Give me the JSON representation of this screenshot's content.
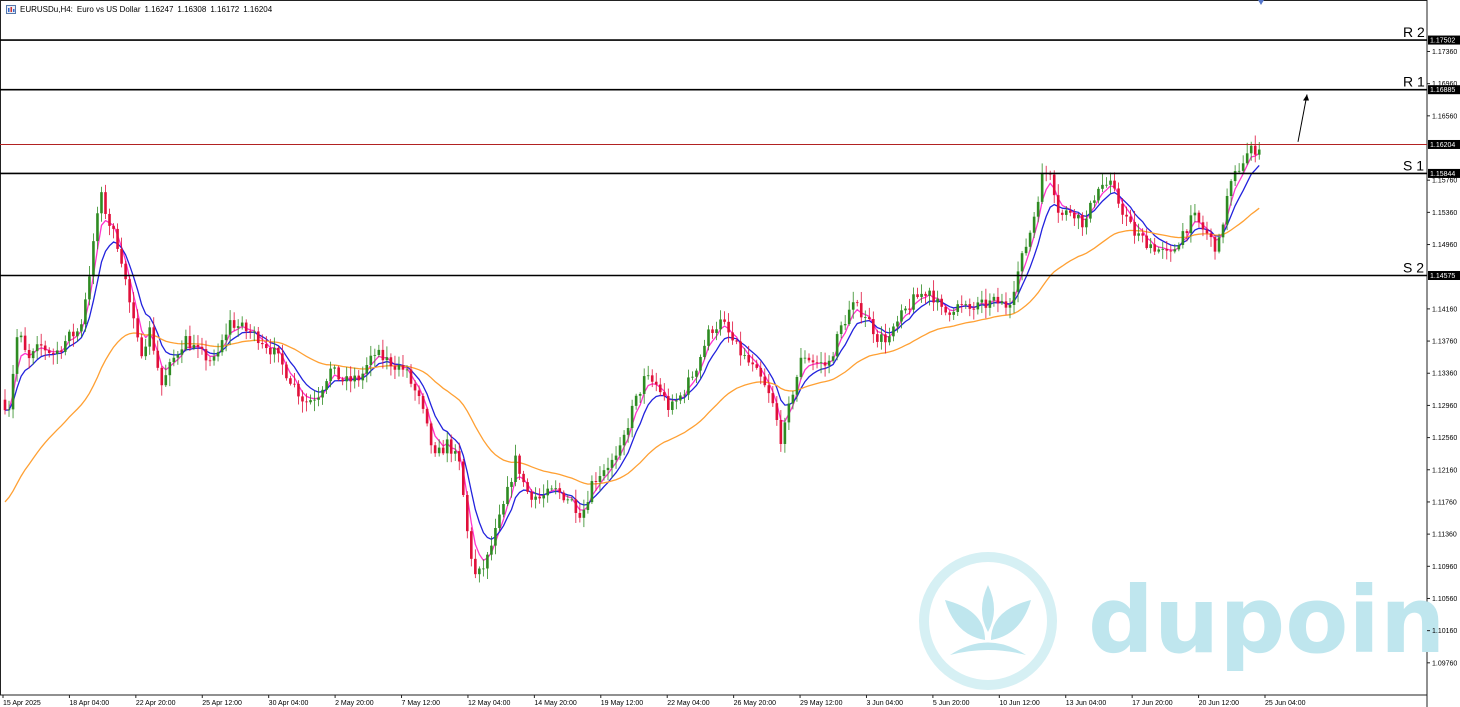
{
  "header": {
    "symbol": "EURUSDu,H4:",
    "description": "Euro vs US Dollar",
    "open": "1.16247",
    "high": "1.16308",
    "low": "1.16172",
    "close": "1.16204"
  },
  "watermark": {
    "text": "dupoin",
    "icon": "lotus-logo-icon",
    "color": "#bfe6ee"
  },
  "colors": {
    "bull": "#2e8b22",
    "bear": "#e0103a",
    "ma_fast": "#ff33cc",
    "ma_mid": "#2222dd",
    "ma_slow": "#ffa033",
    "current_price_line": "#b22222",
    "level_line": "#000000"
  },
  "chart_data": {
    "type": "candlestick",
    "timeframe": "H4",
    "ylim": [
      1.0936,
      1.18
    ],
    "yticks": [
      "1.17360",
      "1.16960",
      "1.16560",
      "1.15760",
      "1.15360",
      "1.14960",
      "1.14160",
      "1.13760",
      "1.13360",
      "1.12960",
      "1.12560",
      "1.12160",
      "1.11760",
      "1.11360",
      "1.10960",
      "1.10560",
      "1.10160",
      "1.09760"
    ],
    "xticks": [
      "15 Apr 2025",
      "18 Apr 04:00",
      "22 Apr 20:00",
      "25 Apr 12:00",
      "30 Apr 04:00",
      "2 May 20:00",
      "7 May 12:00",
      "12 May 04:00",
      "14 May 20:00",
      "19 May 12:00",
      "22 May 04:00",
      "26 May 20:00",
      "29 May 12:00",
      "3 Jun 04:00",
      "5 Jun 20:00",
      "10 Jun 12:00",
      "13 Jun 04:00",
      "17 Jun 20:00",
      "20 Jun 12:00",
      "25 Jun 04:00"
    ],
    "levels": [
      {
        "name": "R 2",
        "value": 1.17502,
        "label": "1.17502"
      },
      {
        "name": "R 1",
        "value": 1.16885,
        "label": "1.16885"
      },
      {
        "name": "S 1",
        "value": 1.15844,
        "label": "1.15844"
      },
      {
        "name": "S 2",
        "value": 1.14575,
        "label": "1.14575"
      }
    ],
    "current_price": {
      "value": 1.16204,
      "label": "1.16204"
    },
    "close_path": [
      [
        0,
        1.132
      ],
      [
        8,
        1.1285
      ],
      [
        18,
        1.139
      ],
      [
        28,
        1.135
      ],
      [
        40,
        1.137
      ],
      [
        55,
        1.136
      ],
      [
        68,
        1.138
      ],
      [
        80,
        1.139
      ],
      [
        92,
        1.148
      ],
      [
        100,
        1.156
      ],
      [
        110,
        1.152
      ],
      [
        120,
        1.149
      ],
      [
        130,
        1.142
      ],
      [
        140,
        1.136
      ],
      [
        150,
        1.139
      ],
      [
        162,
        1.132
      ],
      [
        172,
        1.135
      ],
      [
        185,
        1.138
      ],
      [
        200,
        1.136
      ],
      [
        215,
        1.135
      ],
      [
        230,
        1.14
      ],
      [
        245,
        1.139
      ],
      [
        260,
        1.138
      ],
      [
        275,
        1.136
      ],
      [
        290,
        1.133
      ],
      [
        305,
        1.13
      ],
      [
        318,
        1.131
      ],
      [
        330,
        1.134
      ],
      [
        345,
        1.1325
      ],
      [
        360,
        1.133
      ],
      [
        375,
        1.136
      ],
      [
        390,
        1.135
      ],
      [
        405,
        1.134
      ],
      [
        420,
        1.13
      ],
      [
        435,
        1.123
      ],
      [
        448,
        1.125
      ],
      [
        460,
        1.122
      ],
      [
        468,
        1.113
      ],
      [
        476,
        1.108
      ],
      [
        486,
        1.11
      ],
      [
        496,
        1.114
      ],
      [
        506,
        1.118
      ],
      [
        516,
        1.123
      ],
      [
        526,
        1.119
      ],
      [
        540,
        1.118
      ],
      [
        555,
        1.119
      ],
      [
        570,
        1.118
      ],
      [
        582,
        1.116
      ],
      [
        592,
        1.12
      ],
      [
        605,
        1.122
      ],
      [
        618,
        1.123
      ],
      [
        632,
        1.129
      ],
      [
        645,
        1.133
      ],
      [
        658,
        1.132
      ],
      [
        670,
        1.129
      ],
      [
        682,
        1.131
      ],
      [
        695,
        1.134
      ],
      [
        710,
        1.139
      ],
      [
        722,
        1.14
      ],
      [
        735,
        1.137
      ],
      [
        748,
        1.135
      ],
      [
        760,
        1.133
      ],
      [
        772,
        1.13
      ],
      [
        782,
        1.125
      ],
      [
        792,
        1.131
      ],
      [
        803,
        1.136
      ],
      [
        815,
        1.135
      ],
      [
        828,
        1.1345
      ],
      [
        840,
        1.139
      ],
      [
        852,
        1.142
      ],
      [
        865,
        1.141
      ],
      [
        878,
        1.138
      ],
      [
        890,
        1.138
      ],
      [
        903,
        1.141
      ],
      [
        916,
        1.143
      ],
      [
        930,
        1.144
      ],
      [
        943,
        1.141
      ],
      [
        956,
        1.142
      ],
      [
        969,
        1.1415
      ],
      [
        982,
        1.142
      ],
      [
        995,
        1.1425
      ],
      [
        1008,
        1.142
      ],
      [
        1020,
        1.147
      ],
      [
        1032,
        1.152
      ],
      [
        1042,
        1.158
      ],
      [
        1050,
        1.159
      ],
      [
        1060,
        1.153
      ],
      [
        1072,
        1.154
      ],
      [
        1085,
        1.152
      ],
      [
        1098,
        1.157
      ],
      [
        1110,
        1.157
      ],
      [
        1122,
        1.154
      ],
      [
        1134,
        1.151
      ],
      [
        1146,
        1.15
      ],
      [
        1158,
        1.149
      ],
      [
        1170,
        1.148
      ],
      [
        1182,
        1.151
      ],
      [
        1194,
        1.153
      ],
      [
        1206,
        1.151
      ],
      [
        1218,
        1.149
      ],
      [
        1228,
        1.156
      ],
      [
        1238,
        1.159
      ],
      [
        1248,
        1.161
      ],
      [
        1262,
        1.162
      ]
    ],
    "ma_series": [
      {
        "key": "ma_fast",
        "period_hint": "fast",
        "color": "#ff33cc",
        "smoothing": 0.42
      },
      {
        "key": "ma_mid",
        "period_hint": "medium",
        "color": "#2222dd",
        "smoothing": 0.22
      },
      {
        "key": "ma_slow",
        "period_hint": "slow",
        "color": "#ffa033",
        "start": 1.117,
        "smoothing": 0.05
      }
    ],
    "projection_arrow": {
      "from_value": 1.162,
      "to_value": 1.1685
    }
  }
}
